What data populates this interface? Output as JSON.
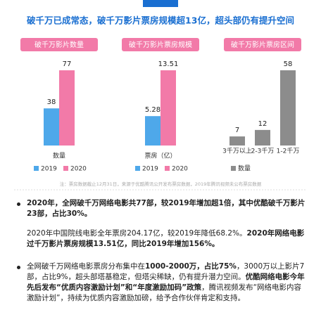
{
  "headline": "破千万已成常态，破千万影片票房规模超13亿，超头部仍有提升空间",
  "chart_data": [
    {
      "type": "bar",
      "title": "破千万影片数量",
      "categories": [
        "数量"
      ],
      "series": [
        {
          "name": "2019",
          "color": "#4ea8ea",
          "values": [
            38
          ]
        },
        {
          "name": "2020",
          "color": "#f27aa8",
          "values": [
            77
          ]
        }
      ]
    },
    {
      "type": "bar",
      "title": "破千万影片票房规模",
      "categories": [
        "票房（亿）"
      ],
      "series": [
        {
          "name": "2019",
          "color": "#4ea8ea",
          "values": [
            5.28
          ]
        },
        {
          "name": "2020",
          "color": "#f27aa8",
          "values": [
            13.51
          ]
        }
      ]
    },
    {
      "type": "bar",
      "title": "破千万影片票房区间",
      "categories": [
        "3千万以上",
        "2-3千万",
        "1-2千万"
      ],
      "series": [
        {
          "name": "数量",
          "color": "#8c8c8c",
          "values": [
            7,
            12,
            58
          ]
        }
      ]
    }
  ],
  "footnote": "注：票房数据截止12月31日，来源于优酷腾讯公开发布票房数据，2019年腾讯视频未公布票房数据",
  "paragraphs": [
    [
      {
        "text": "2020年，全网破千万网络电影共77部，较2019年增加超1倍，其中优酷破千万影片23部，占比30%。",
        "bold": true
      }
    ],
    [
      {
        "text": "2020年中国院线电影全年票房204.17亿，较2019年降低68.2%。",
        "bold": false
      },
      {
        "text": "2020年网络电影过千万影片票房规模13.51亿，同比2019年增加156%。",
        "bold": true
      }
    ],
    [
      {
        "text": "全网破千万网络电影票房分布集中在",
        "bold": false
      },
      {
        "text": "1000-2000万，占比75%",
        "bold": true
      },
      {
        "text": "，3000万以上影片7部，占比9%，超头部塔基稳定，但塔尖稀缺，仍有提升潜力空间。",
        "bold": false
      },
      {
        "text": "优酷网络电影今年先后发布“优质内容激励计划”和“年度激励加码”政策",
        "bold": true
      },
      {
        "text": "，腾讯视频发布“网络电影内容激励计划”，持续为优质内容激励加磅，给予合作伙伴肯定和支持。",
        "bold": false
      }
    ]
  ]
}
